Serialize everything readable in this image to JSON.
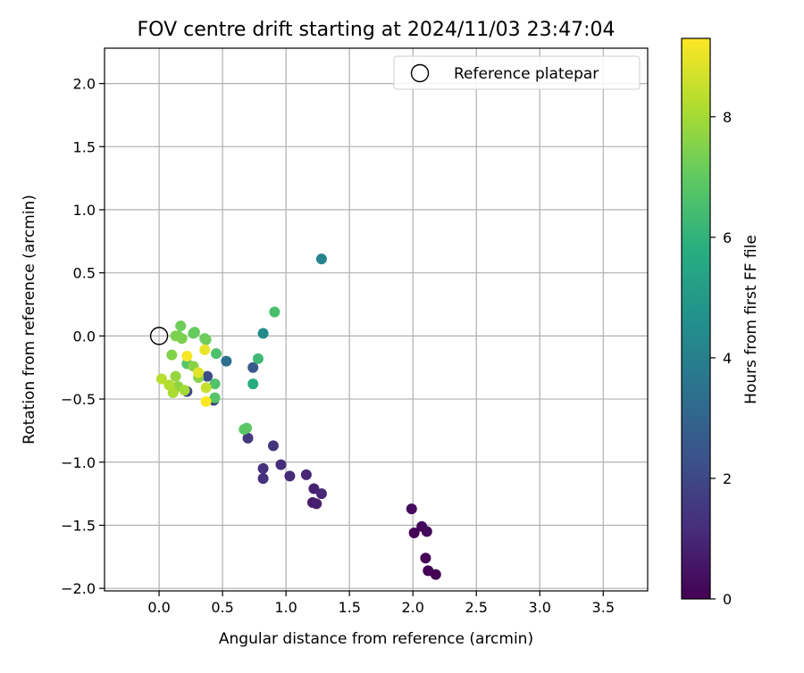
{
  "chart_data": {
    "type": "scatter",
    "title": "FOV centre drift starting at 2024/11/03 23:47:04",
    "xlabel": "Angular distance from reference (arcmin)",
    "ylabel": "Rotation from reference (arcmin)",
    "xlim": [
      -0.43,
      3.85
    ],
    "ylim": [
      -2.02,
      2.28
    ],
    "xticks": [
      "0.0",
      "0.5",
      "1.0",
      "1.5",
      "2.0",
      "2.5",
      "3.0",
      "3.5"
    ],
    "yticks": [
      "2.0",
      "1.5",
      "1.0",
      "0.5",
      "0.0",
      "−0.5",
      "−1.0",
      "−1.5",
      "−2.0"
    ],
    "grid": true,
    "legend": {
      "position": "top-right",
      "entries": [
        "Reference platepar"
      ]
    },
    "colorbar": {
      "label": "Hours from first FF file",
      "range": [
        0,
        9.3
      ],
      "ticks": [
        "0",
        "2",
        "4",
        "6",
        "8"
      ],
      "colormap": "viridis"
    },
    "reference_point": {
      "x": 0.0,
      "y": 0.0
    },
    "series": [
      {
        "points": [
          {
            "x": 2.12,
            "y": -1.86,
            "h": 0.0
          },
          {
            "x": 2.18,
            "y": -1.89,
            "h": 0.0
          },
          {
            "x": 2.1,
            "y": -1.76,
            "h": 0.1
          },
          {
            "x": 2.01,
            "y": -1.56,
            "h": 0.1
          },
          {
            "x": 2.07,
            "y": -1.51,
            "h": 0.2
          },
          {
            "x": 2.11,
            "y": -1.55,
            "h": 0.2
          },
          {
            "x": 1.99,
            "y": -1.37,
            "h": 0.3
          },
          {
            "x": 1.21,
            "y": -1.32,
            "h": 0.7
          },
          {
            "x": 1.24,
            "y": -1.33,
            "h": 0.8
          },
          {
            "x": 1.22,
            "y": -1.21,
            "h": 0.9
          },
          {
            "x": 1.28,
            "y": -1.25,
            "h": 1.0
          },
          {
            "x": 1.16,
            "y": -1.1,
            "h": 1.0
          },
          {
            "x": 1.03,
            "y": -1.11,
            "h": 1.1
          },
          {
            "x": 0.96,
            "y": -1.02,
            "h": 1.2
          },
          {
            "x": 0.82,
            "y": -1.13,
            "h": 1.3
          },
          {
            "x": 0.82,
            "y": -1.05,
            "h": 1.3
          },
          {
            "x": 0.9,
            "y": -0.87,
            "h": 1.4
          },
          {
            "x": 0.7,
            "y": -0.81,
            "h": 1.5
          },
          {
            "x": 0.43,
            "y": -0.51,
            "h": 1.9
          },
          {
            "x": 0.22,
            "y": -0.44,
            "h": 2.0
          },
          {
            "x": 0.38,
            "y": -0.32,
            "h": 2.2
          },
          {
            "x": 0.74,
            "y": -0.25,
            "h": 2.6
          },
          {
            "x": 0.53,
            "y": -0.2,
            "h": 3.4
          },
          {
            "x": 1.28,
            "y": 0.61,
            "h": 4.2
          },
          {
            "x": 0.82,
            "y": 0.02,
            "h": 4.4
          },
          {
            "x": 0.74,
            "y": -0.38,
            "h": 5.7
          },
          {
            "x": 0.91,
            "y": 0.19,
            "h": 6.5
          },
          {
            "x": 0.78,
            "y": -0.18,
            "h": 6.3
          },
          {
            "x": 0.45,
            "y": -0.14,
            "h": 6.6
          },
          {
            "x": 0.44,
            "y": -0.38,
            "h": 6.7
          },
          {
            "x": 0.44,
            "y": -0.49,
            "h": 6.8
          },
          {
            "x": 0.67,
            "y": -0.74,
            "h": 6.9
          },
          {
            "x": 0.69,
            "y": -0.73,
            "h": 6.9
          },
          {
            "x": 0.22,
            "y": -0.22,
            "h": 6.8
          },
          {
            "x": 0.27,
            "y": 0.02,
            "h": 7.0
          },
          {
            "x": 0.28,
            "y": 0.03,
            "h": 7.1
          },
          {
            "x": 0.36,
            "y": -0.02,
            "h": 7.1
          },
          {
            "x": 0.37,
            "y": -0.03,
            "h": 7.2
          },
          {
            "x": 0.17,
            "y": 0.08,
            "h": 7.2
          },
          {
            "x": 0.15,
            "y": 0.0,
            "h": 7.3
          },
          {
            "x": 0.13,
            "y": 0.0,
            "h": 7.4
          },
          {
            "x": 0.18,
            "y": -0.02,
            "h": 7.4
          },
          {
            "x": 0.1,
            "y": -0.15,
            "h": 7.5
          },
          {
            "x": 0.27,
            "y": -0.24,
            "h": 7.6
          },
          {
            "x": 0.31,
            "y": -0.33,
            "h": 7.6
          },
          {
            "x": 0.15,
            "y": -0.4,
            "h": 7.7
          },
          {
            "x": 0.13,
            "y": -0.32,
            "h": 7.8
          },
          {
            "x": 0.2,
            "y": -0.43,
            "h": 8.0
          },
          {
            "x": 0.11,
            "y": -0.45,
            "h": 8.1
          },
          {
            "x": 0.08,
            "y": -0.39,
            "h": 8.2
          },
          {
            "x": 0.02,
            "y": -0.34,
            "h": 8.3
          },
          {
            "x": 0.37,
            "y": -0.41,
            "h": 8.5
          },
          {
            "x": 0.31,
            "y": -0.29,
            "h": 8.9
          },
          {
            "x": 0.36,
            "y": -0.11,
            "h": 9.0
          },
          {
            "x": 0.22,
            "y": -0.16,
            "h": 9.2
          },
          {
            "x": 0.37,
            "y": -0.52,
            "h": 9.3
          }
        ]
      }
    ]
  }
}
